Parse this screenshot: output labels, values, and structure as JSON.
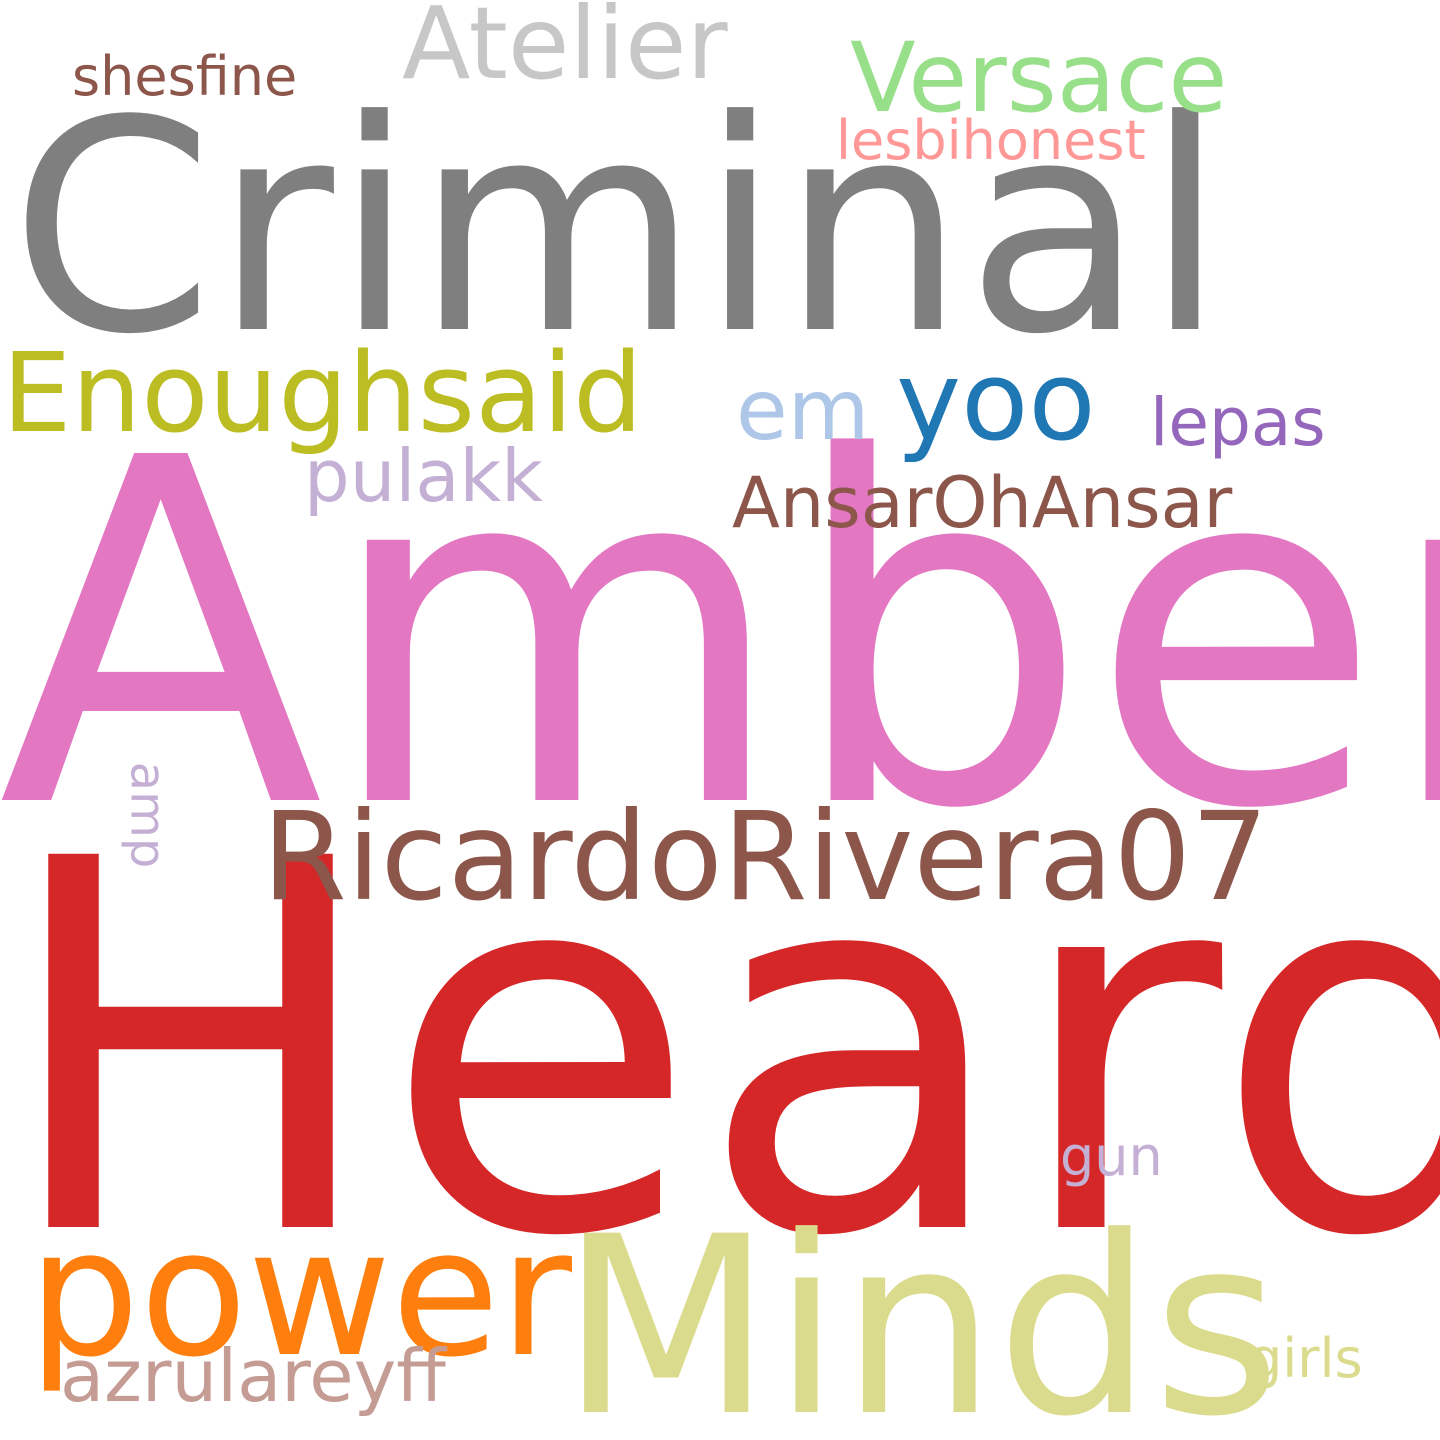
{
  "words": [
    {
      "id": "criminal",
      "text": "Criminal",
      "color": "#7f7f7f"
    },
    {
      "id": "amber",
      "text": "Amber",
      "color": "#e377c2"
    },
    {
      "id": "heard",
      "text": "Heard",
      "color": "#d62728"
    },
    {
      "id": "minds",
      "text": "Minds",
      "color": "#dbdb8d"
    },
    {
      "id": "power",
      "text": "power",
      "color": "#ff7f0e"
    },
    {
      "id": "ricardo",
      "text": "RicardoRivera07",
      "color": "#8c564b"
    },
    {
      "id": "enoughsaid",
      "text": "Enoughsaid",
      "color": "#bcbd22"
    },
    {
      "id": "atelier",
      "text": "Atelier",
      "color": "#c7c7c7"
    },
    {
      "id": "versace",
      "text": "Versace",
      "color": "#98df8a"
    },
    {
      "id": "yoo",
      "text": "yoo",
      "color": "#1f77b4"
    },
    {
      "id": "em",
      "text": "em",
      "color": "#aec7e8"
    },
    {
      "id": "ansar",
      "text": "AnsarOhAnsar",
      "color": "#8c564b"
    },
    {
      "id": "azrul",
      "text": "azrulareyff",
      "color": "#c49c94"
    },
    {
      "id": "pulakk",
      "text": "pulakk",
      "color": "#c5b0d5"
    },
    {
      "id": "lepas",
      "text": "lepas",
      "color": "#9467bd"
    },
    {
      "id": "shesfine",
      "text": "shesfine",
      "color": "#8c564b"
    },
    {
      "id": "lesbi",
      "text": "lesbihonest",
      "color": "#ff9896"
    },
    {
      "id": "girls",
      "text": "girls",
      "color": "#dbdb8d"
    },
    {
      "id": "gun",
      "text": "gun",
      "color": "#c5b0d5"
    },
    {
      "id": "amp",
      "text": "amp",
      "color": "#c5b0d5"
    }
  ]
}
